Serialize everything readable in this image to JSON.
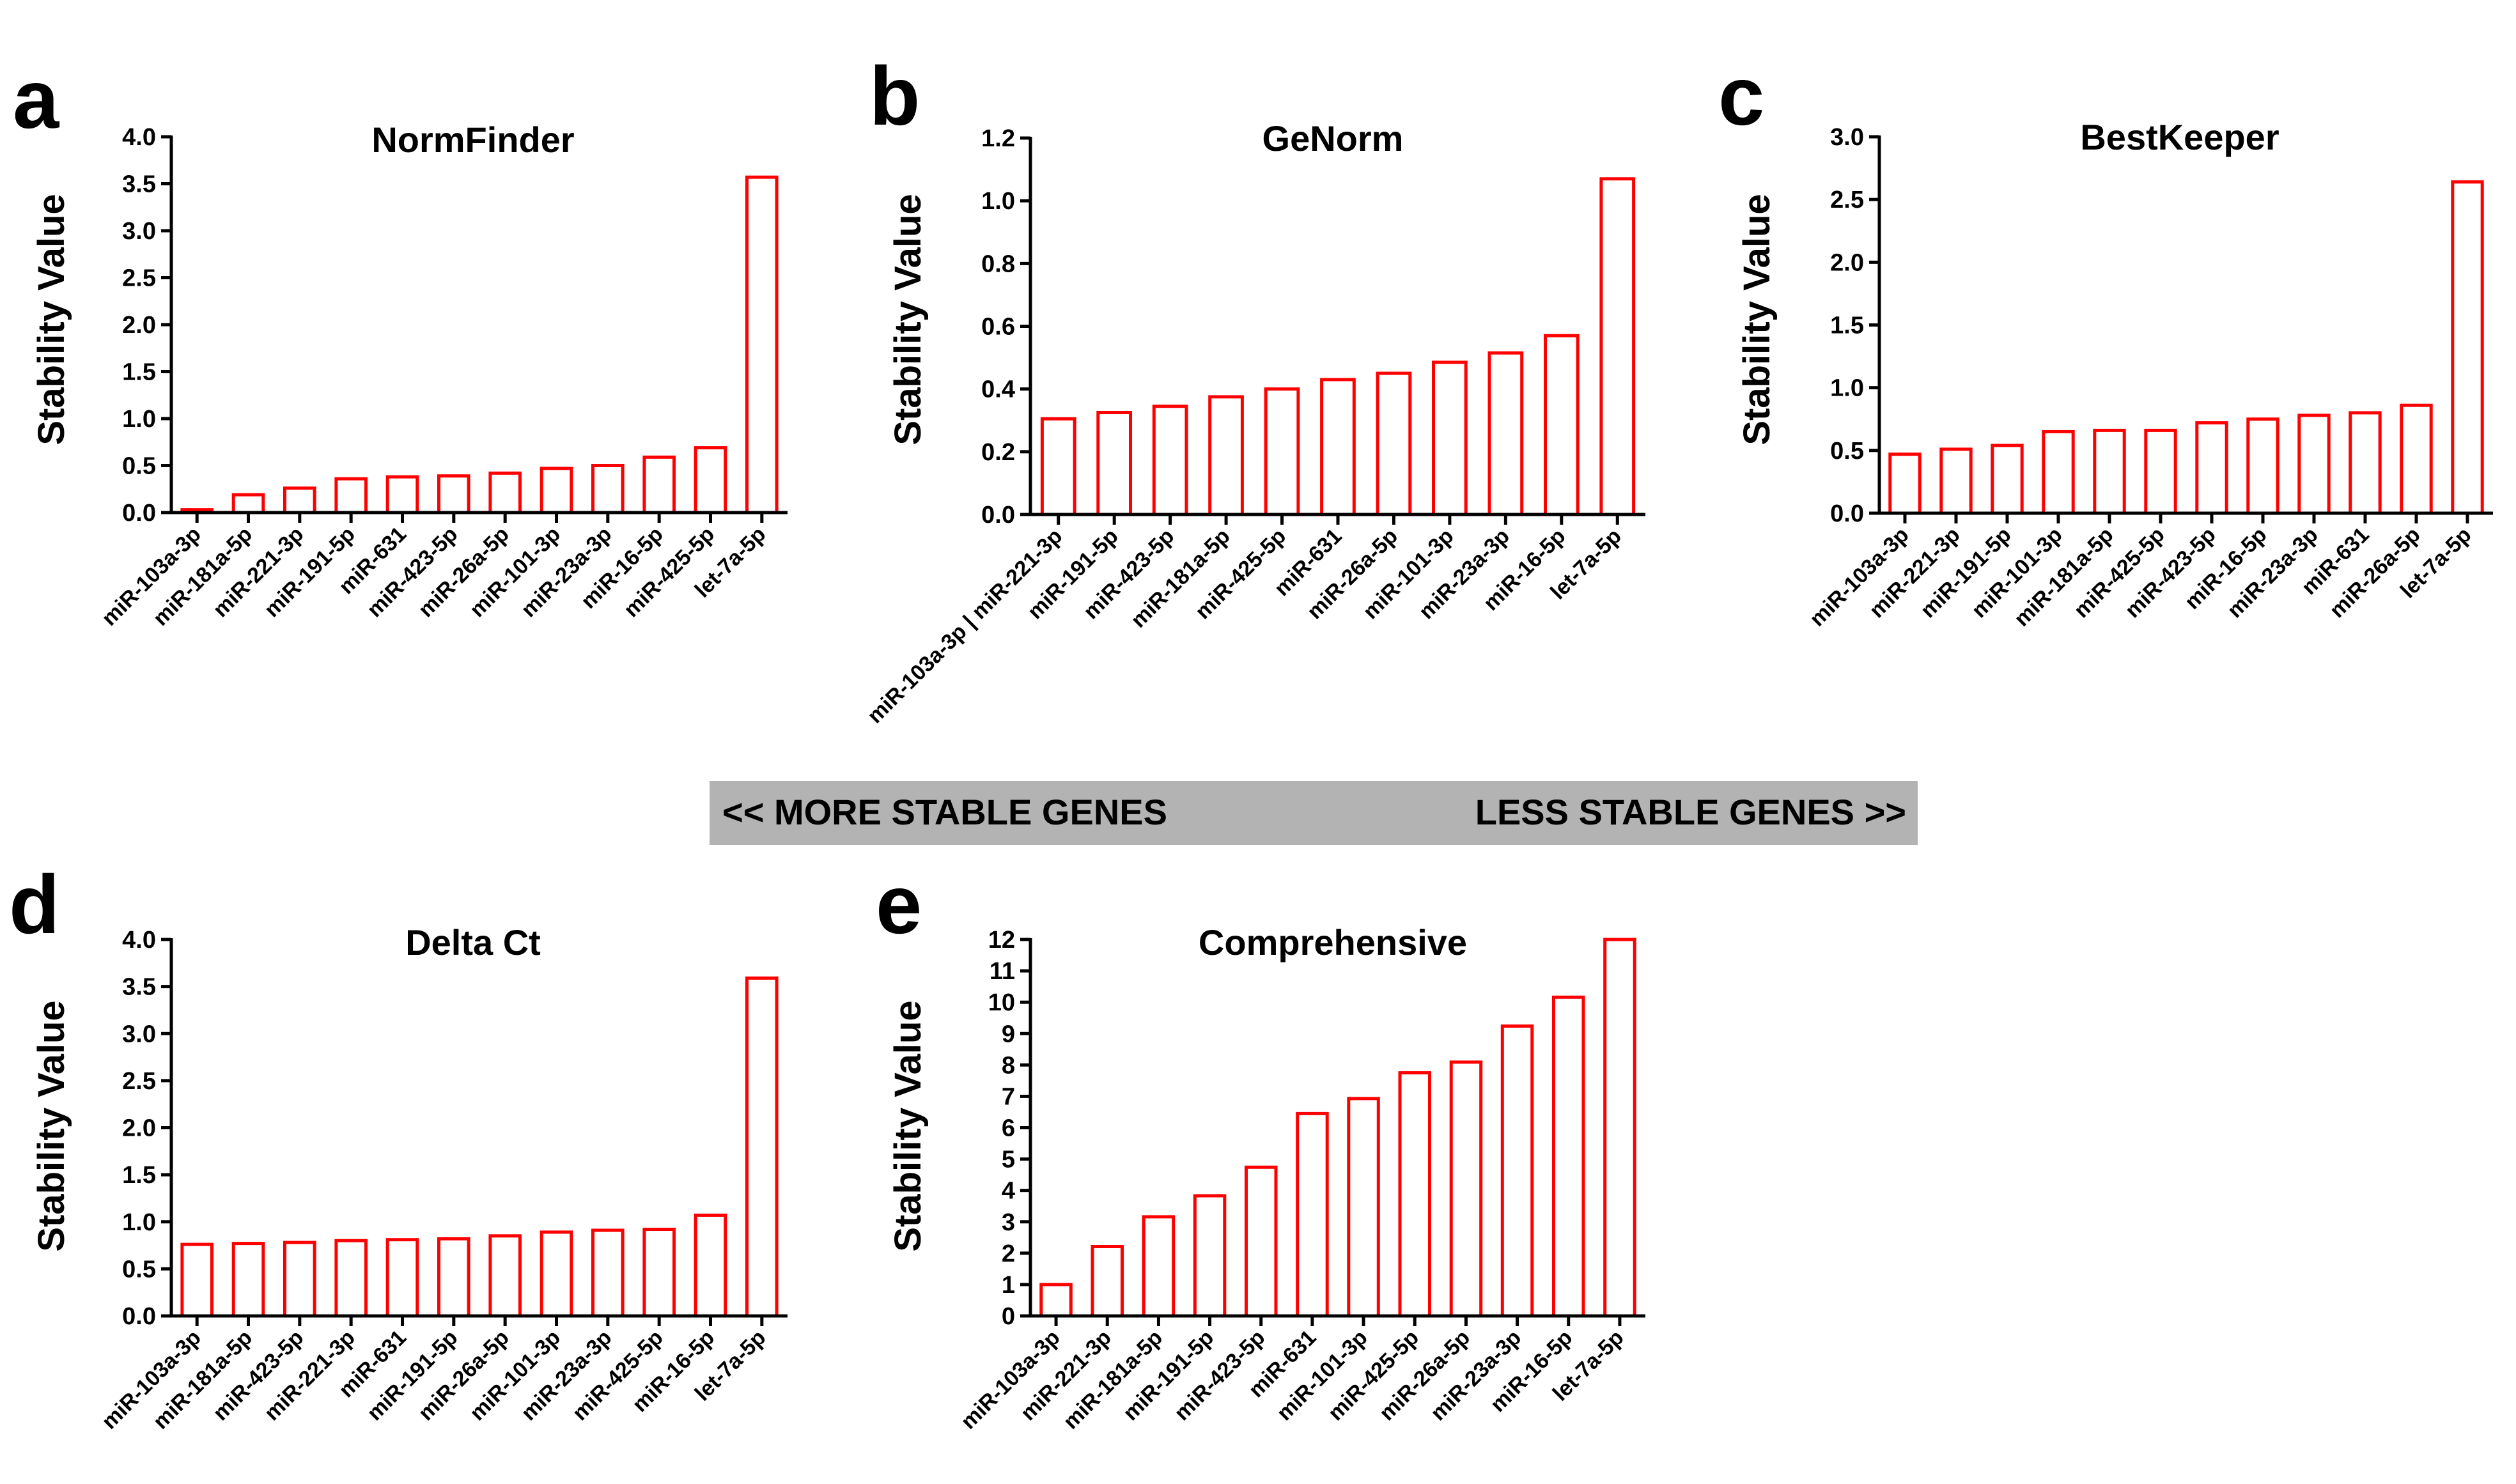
{
  "colors": {
    "bar_stroke": "#ff0000",
    "banner": "#b3b3b3"
  },
  "banner": {
    "left": "<< MORE STABLE GENES",
    "right": "LESS STABLE GENES >>"
  },
  "chart_data": [
    {
      "panel": "a",
      "type": "bar",
      "title": "NormFinder",
      "ylabel": "Stability Value",
      "xlabel": "",
      "ylim": [
        0,
        4.0
      ],
      "yticks": [
        "0.0",
        "0.5",
        "1.0",
        "1.5",
        "2.0",
        "2.5",
        "3.0",
        "3.5",
        "4.0"
      ],
      "categories": [
        "miR-103a-3p",
        "miR-181a-5p",
        "miR-221-3p",
        "miR-191-5p",
        "miR-631",
        "miR-423-5p",
        "miR-26a-5p",
        "miR-101-3p",
        "miR-23a-3p",
        "miR-16-5p",
        "miR-425-5p",
        "let-7a-5p"
      ],
      "values": [
        0.03,
        0.19,
        0.26,
        0.36,
        0.38,
        0.39,
        0.42,
        0.47,
        0.5,
        0.59,
        0.69,
        3.57
      ]
    },
    {
      "panel": "b",
      "type": "bar",
      "title": "GeNorm",
      "ylabel": "Stability Value",
      "xlabel": "",
      "ylim": [
        0,
        1.2
      ],
      "yticks": [
        "0.0",
        "0.2",
        "0.4",
        "0.6",
        "0.8",
        "1.0",
        "1.2"
      ],
      "categories": [
        "miR-103a-3p | miR-221-3p",
        "miR-191-5p",
        "miR-423-5p",
        "miR-181a-5p",
        "miR-425-5p",
        "miR-631",
        "miR-26a-5p",
        "miR-101-3p",
        "miR-23a-3p",
        "miR-16-5p",
        "let-7a-5p"
      ],
      "values": [
        0.305,
        0.325,
        0.345,
        0.375,
        0.4,
        0.43,
        0.45,
        0.485,
        0.515,
        0.57,
        1.07
      ]
    },
    {
      "panel": "c",
      "type": "bar",
      "title": "BestKeeper",
      "ylabel": "Stability Value",
      "xlabel": "",
      "ylim": [
        0,
        3.0
      ],
      "yticks": [
        "0.0",
        "0.5",
        "1.0",
        "1.5",
        "2.0",
        "2.5",
        "3.0"
      ],
      "categories": [
        "miR-103a-3p",
        "miR-221-3p",
        "miR-191-5p",
        "miR-101-3p",
        "miR-181a-5p",
        "miR-425-5p",
        "miR-423-5p",
        "miR-16-5p",
        "miR-23a-3p",
        "miR-631",
        "miR-26a-5p",
        "let-7a-5p"
      ],
      "values": [
        0.47,
        0.51,
        0.54,
        0.65,
        0.66,
        0.66,
        0.72,
        0.75,
        0.78,
        0.8,
        0.86,
        2.64
      ]
    },
    {
      "panel": "d",
      "type": "bar",
      "title": "Delta Ct",
      "ylabel": "Stability Value",
      "xlabel": "",
      "ylim": [
        0,
        4.0
      ],
      "yticks": [
        "0.0",
        "0.5",
        "1.0",
        "1.5",
        "2.0",
        "2.5",
        "3.0",
        "3.5",
        "4.0"
      ],
      "categories": [
        "miR-103a-3p",
        "miR-181a-5p",
        "miR-423-5p",
        "miR-221-3p",
        "miR-631",
        "miR-191-5p",
        "miR-26a-5p",
        "miR-101-3p",
        "miR-23a-3p",
        "miR-425-5p",
        "miR-16-5p",
        "let-7a-5p"
      ],
      "values": [
        0.76,
        0.77,
        0.78,
        0.8,
        0.81,
        0.82,
        0.85,
        0.89,
        0.91,
        0.92,
        1.07,
        3.59
      ]
    },
    {
      "panel": "e",
      "type": "bar",
      "title": "Comprehensive",
      "ylabel": "Stability Value",
      "xlabel": "",
      "ylim": [
        0,
        12
      ],
      "yticks": [
        "0",
        "1",
        "2",
        "3",
        "4",
        "5",
        "6",
        "7",
        "8",
        "9",
        "10",
        "11",
        "12"
      ],
      "categories": [
        "miR-103a-3p",
        "miR-221-3p",
        "miR-181a-5p",
        "miR-191-5p",
        "miR-423-5p",
        "miR-631",
        "miR-101-3p",
        "miR-425-5p",
        "miR-26a-5p",
        "miR-23a-3p",
        "miR-16-5p",
        "let-7a-5p"
      ],
      "values": [
        1.0,
        2.21,
        3.16,
        3.83,
        4.74,
        6.45,
        6.93,
        7.75,
        8.09,
        9.24,
        10.16,
        12.0
      ]
    }
  ]
}
